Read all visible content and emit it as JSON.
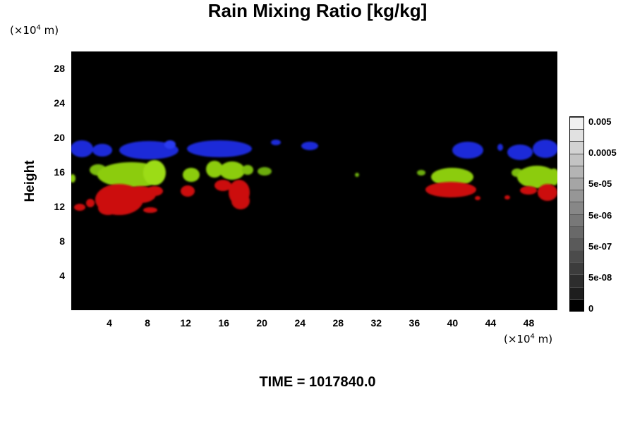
{
  "chart_data": {
    "type": "heatmap",
    "title": "Rain Mixing Ratio [kg/kg]",
    "ylabel": "Height",
    "y_unit_prefix": "(×10",
    "y_unit_exp": "4",
    "y_unit_suffix": " m)",
    "x_unit_prefix": "(×10",
    "x_unit_exp": "4",
    "x_unit_suffix": " m)",
    "xlim": [
      0,
      51
    ],
    "ylim": [
      0,
      30
    ],
    "xticks": [
      "4",
      "8",
      "12",
      "16",
      "20",
      "24",
      "28",
      "32",
      "36",
      "40",
      "44",
      "48"
    ],
    "yticks": [
      "4",
      "8",
      "12",
      "16",
      "20",
      "24",
      "28"
    ],
    "colorbar_labels": [
      "0.005",
      "0.0005",
      "5e-05",
      "5e-06",
      "5e-07",
      "5e-08",
      "0"
    ],
    "background_color": "#000000",
    "layers": [
      {
        "color": "#1a2ad8",
        "height_range": [
          17.5,
          19.5
        ]
      },
      {
        "color": "#8ccc10",
        "height_range": [
          14.5,
          17
        ]
      },
      {
        "color": "#cc1010",
        "height_range": [
          11,
          15
        ]
      }
    ],
    "footer": "TIME = 1017840.0"
  }
}
